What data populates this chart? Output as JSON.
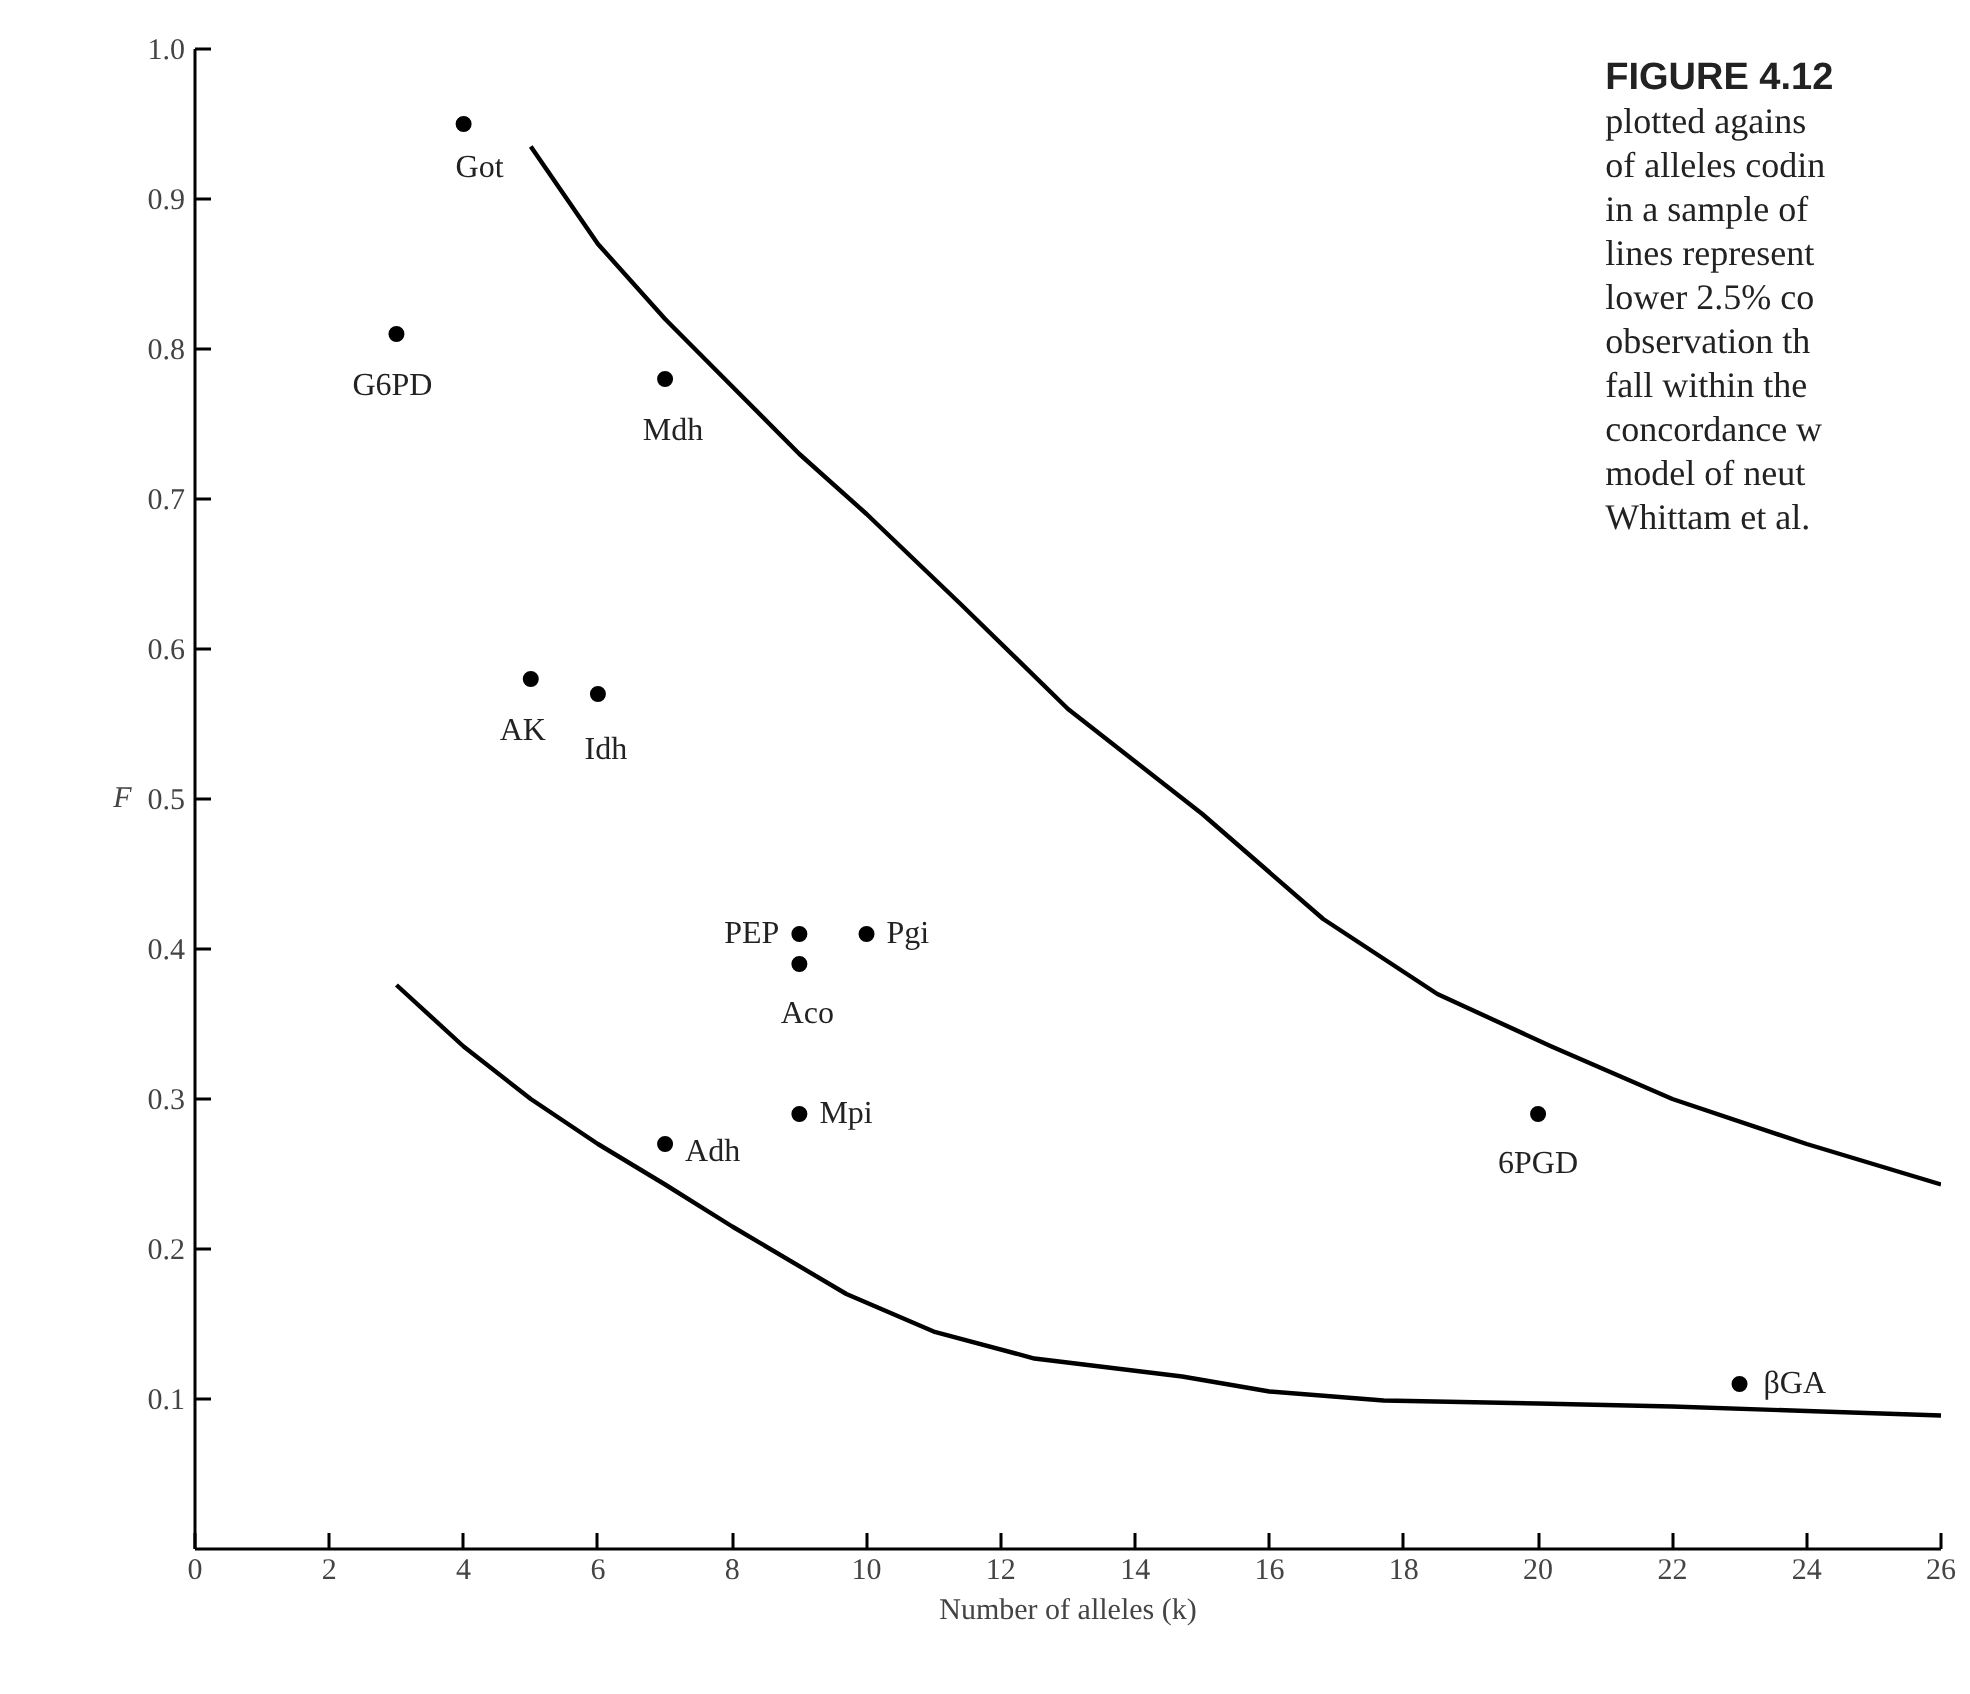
{
  "chart_data": {
    "type": "scatter",
    "xlabel": "Number of alleles (k)",
    "ylabel": "F",
    "xlim": [
      0,
      26
    ],
    "ylim": [
      0,
      1.0
    ],
    "xticks": [
      0,
      2,
      4,
      6,
      8,
      10,
      12,
      14,
      16,
      18,
      20,
      22,
      24,
      26
    ],
    "yticks": [
      0.1,
      0.2,
      0.3,
      0.4,
      0.5,
      0.6,
      0.7,
      0.8,
      0.9,
      {
        "value": 1.0,
        "label": "1.0"
      }
    ],
    "grid": false,
    "marker": "circle",
    "line_style": "solid",
    "series": [
      {
        "name": "Got",
        "color": "#000000",
        "x": [
          4
        ],
        "values": [
          0.95
        ]
      },
      {
        "name": "G6PD",
        "color": "#000000",
        "x": [
          3
        ],
        "values": [
          0.81
        ]
      },
      {
        "name": "Mdh",
        "color": "#000000",
        "x": [
          7
        ],
        "values": [
          0.78
        ]
      },
      {
        "name": "AK",
        "color": "#000000",
        "x": [
          5
        ],
        "values": [
          0.58
        ]
      },
      {
        "name": "Idh",
        "color": "#000000",
        "x": [
          6
        ],
        "values": [
          0.57
        ]
      },
      {
        "name": "PEP",
        "color": "#000000",
        "x": [
          9
        ],
        "values": [
          0.41
        ]
      },
      {
        "name": "Pgi",
        "color": "#000000",
        "x": [
          10
        ],
        "values": [
          0.41
        ]
      },
      {
        "name": "Aco",
        "color": "#000000",
        "x": [
          9
        ],
        "values": [
          0.39
        ]
      },
      {
        "name": "Mpi",
        "color": "#000000",
        "x": [
          9
        ],
        "values": [
          0.29
        ]
      },
      {
        "name": "Adh",
        "color": "#000000",
        "x": [
          7
        ],
        "values": [
          0.27
        ]
      },
      {
        "name": "6PGD",
        "color": "#000000",
        "x": [
          20
        ],
        "values": [
          0.29
        ]
      },
      {
        "name": "βGA",
        "color": "#000000",
        "x": [
          23
        ],
        "values": [
          0.11
        ]
      },
      {
        "type": "line",
        "marker": "none",
        "color": "#000000",
        "x": [
          5,
          6,
          7,
          8,
          9,
          10,
          11.4,
          13,
          15,
          16.8,
          18.5,
          20.2,
          22,
          24,
          26
        ],
        "values": [
          0.935,
          0.87,
          0.82,
          0.775,
          0.73,
          0.69,
          0.63,
          0.56,
          0.49,
          0.42,
          0.37,
          0.335,
          0.3,
          0.27,
          0.243
        ]
      },
      {
        "type": "line",
        "marker": "none",
        "color": "#000000",
        "x": [
          3,
          4,
          5,
          6,
          7,
          8,
          9.7,
          11,
          12.5,
          14.7,
          16,
          17.7,
          20,
          22,
          24,
          26
        ],
        "values": [
          0.376,
          0.335,
          0.3,
          0.27,
          0.243,
          0.215,
          0.17,
          0.145,
          0.127,
          0.115,
          0.105,
          0.099,
          0.097,
          0.095,
          0.092,
          0.089
        ]
      }
    ],
    "annotations": [
      "FIGURE 4.12",
      "plotted agains",
      "of alleles codin",
      "in a sample of",
      "lines represent",
      "lower 2.5% co",
      "observation th",
      "fall within the",
      "concordance w",
      "model of neut",
      "Whittam et al."
    ]
  }
}
